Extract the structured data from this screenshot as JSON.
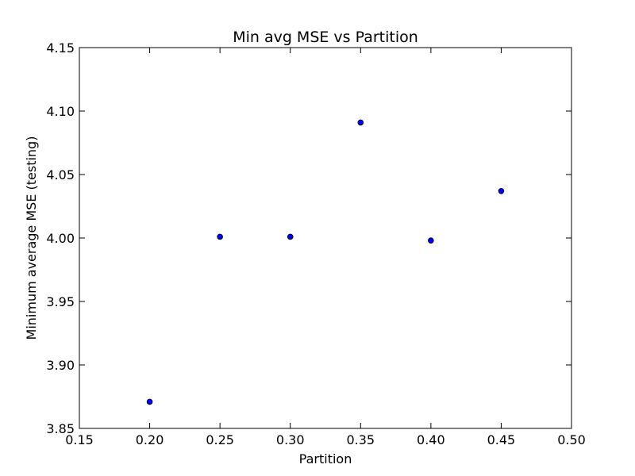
{
  "chart_data": {
    "type": "scatter",
    "title": "Min avg MSE vs Partition",
    "xlabel": "Partition",
    "ylabel": "Minimum average MSE (testing)",
    "xlim": [
      0.15,
      0.5
    ],
    "ylim": [
      3.85,
      4.15
    ],
    "x_ticks": [
      "0.15",
      "0.20",
      "0.25",
      "0.30",
      "0.35",
      "0.40",
      "0.45",
      "0.50"
    ],
    "y_ticks": [
      "3.85",
      "3.90",
      "3.95",
      "4.00",
      "4.05",
      "4.10",
      "4.15"
    ],
    "grid": false,
    "legend": "none",
    "series": [
      {
        "x": [
          0.2,
          0.25,
          0.3,
          0.35,
          0.4,
          0.45
        ],
        "y": [
          3.871,
          4.001,
          4.001,
          4.091,
          3.998,
          4.037
        ],
        "color": "#0000ff",
        "edge_color": "#000000"
      }
    ]
  }
}
